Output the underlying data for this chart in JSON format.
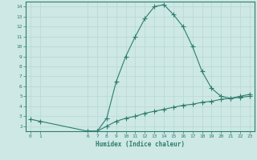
{
  "x": [
    0,
    1,
    6,
    7,
    8,
    9,
    10,
    11,
    12,
    13,
    14,
    15,
    16,
    17,
    18,
    19,
    20,
    21,
    22,
    23
  ],
  "y_main": [
    2.7,
    2.5,
    1.5,
    1.5,
    2.8,
    6.5,
    9.0,
    11.0,
    12.8,
    14.0,
    14.2,
    13.2,
    12.0,
    10.0,
    7.5,
    5.8,
    5.0,
    4.8,
    5.0,
    5.2
  ],
  "x_lower": [
    6,
    7,
    8,
    9,
    10,
    11,
    12,
    13,
    14,
    15,
    16,
    17,
    18,
    19,
    20,
    21,
    22,
    23
  ],
  "y_lower": [
    1.5,
    1.5,
    2.0,
    2.5,
    2.8,
    3.0,
    3.3,
    3.5,
    3.7,
    3.9,
    4.1,
    4.2,
    4.4,
    4.5,
    4.7,
    4.8,
    4.9,
    5.0
  ],
  "line_color": "#2e7d6e",
  "bg_color": "#cde8e5",
  "grid_color": "#b8d8d4",
  "xlabel": "Humidex (Indice chaleur)",
  "xlim": [
    -0.5,
    23.5
  ],
  "ylim": [
    1.5,
    14.5
  ],
  "yticks": [
    2,
    3,
    4,
    5,
    6,
    7,
    8,
    9,
    10,
    11,
    12,
    13,
    14
  ],
  "xticks": [
    0,
    1,
    6,
    7,
    8,
    9,
    10,
    11,
    12,
    13,
    14,
    15,
    16,
    17,
    18,
    19,
    20,
    21,
    22,
    23
  ],
  "xtick_labels": [
    "0",
    "1",
    "6",
    "7",
    "8",
    "9",
    "10",
    "11",
    "12",
    "13",
    "14",
    "15",
    "16",
    "17",
    "18",
    "19",
    "20",
    "21",
    "22",
    "23"
  ],
  "marker": "+",
  "marker_size": 4,
  "marker_ew": 0.8,
  "line_width": 0.8
}
